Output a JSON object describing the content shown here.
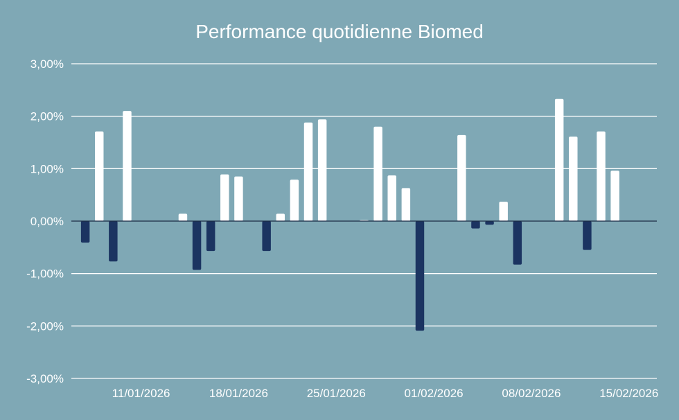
{
  "chart_data": {
    "type": "bar",
    "title": "Performance quotidienne Biomed",
    "xlabel": "",
    "ylabel": "",
    "ylim": [
      -0.03,
      0.03
    ],
    "y_ticks": [
      "3,00%",
      "2,00%",
      "1,00%",
      "0,00%",
      "-1,00%",
      "-2,00%",
      "-3,00%"
    ],
    "x_ticks": [
      "11/01/2026",
      "18/01/2026",
      "25/01/2026",
      "01/02/2026",
      "08/02/2026",
      "15/02/2026"
    ],
    "x_ticks_dates": [
      "2026-01-11",
      "2026-01-18",
      "2026-01-25",
      "2026-02-01",
      "2026-02-08",
      "2026-02-15"
    ],
    "x_range": [
      "2026-01-06",
      "2026-02-17"
    ],
    "grid": true,
    "legend": "none",
    "colors": {
      "positive": "#ffffff",
      "negative": "#1b3461",
      "background": "#7fa8b5"
    },
    "dates": [
      "2026-01-07",
      "2026-01-08",
      "2026-01-09",
      "2026-01-10",
      "2026-01-14",
      "2026-01-15",
      "2026-01-16",
      "2026-01-17",
      "2026-01-18",
      "2026-01-20",
      "2026-01-21",
      "2026-01-22",
      "2026-01-23",
      "2026-01-24",
      "2026-01-27",
      "2026-01-28",
      "2026-01-29",
      "2026-01-30",
      "2026-01-31",
      "2026-02-03",
      "2026-02-04",
      "2026-02-05",
      "2026-02-06",
      "2026-02-07",
      "2026-02-10",
      "2026-02-11",
      "2026-02-12",
      "2026-02-13",
      "2026-02-14"
    ],
    "values": [
      -0.0041,
      0.0171,
      -0.0077,
      0.021,
      0.0014,
      -0.0093,
      -0.0057,
      0.0089,
      0.0085,
      -0.0057,
      0.0014,
      0.0079,
      0.0188,
      0.0194,
      0.0002,
      0.018,
      0.0087,
      0.0063,
      -0.0209,
      0.0164,
      -0.0014,
      -0.0007,
      0.0037,
      -0.0083,
      0.0233,
      0.0161,
      -0.0055,
      0.0171,
      0.0096
    ]
  }
}
